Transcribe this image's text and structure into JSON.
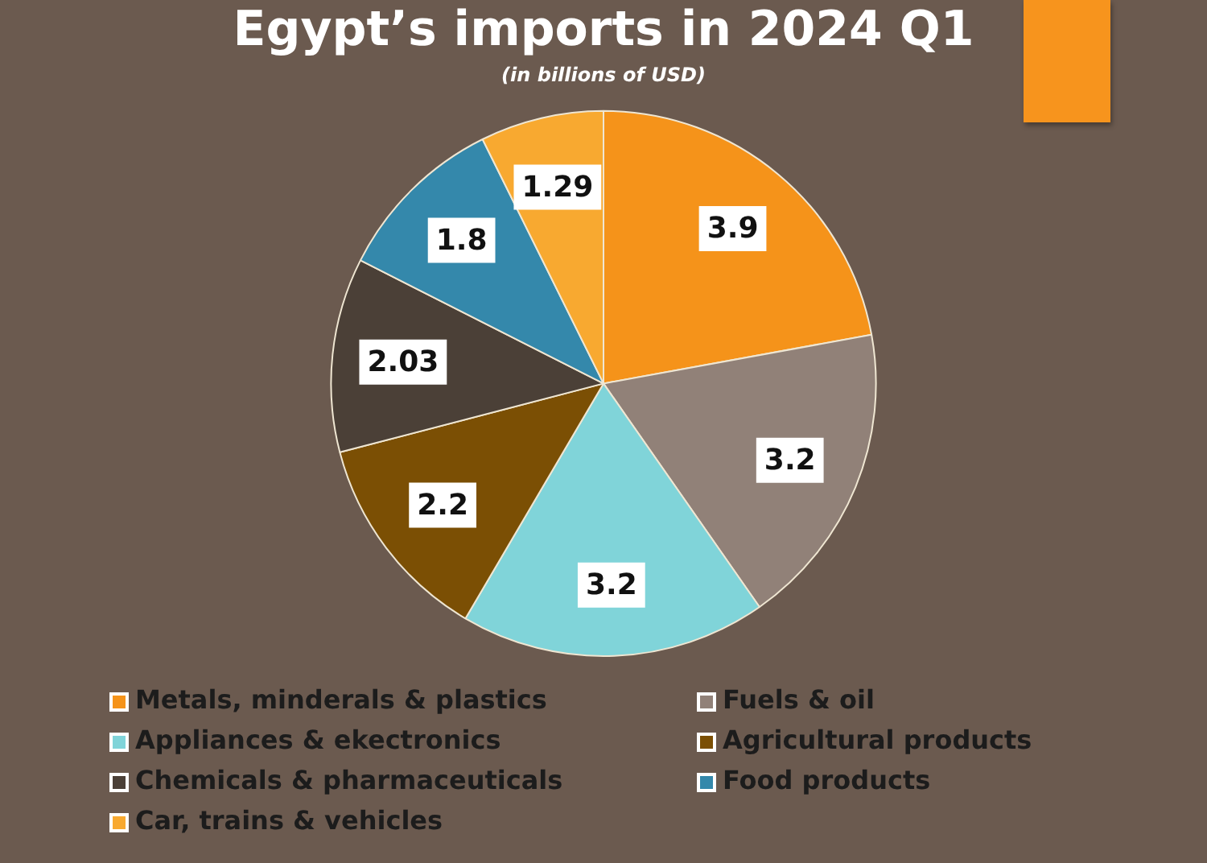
{
  "chart_data": {
    "type": "pie",
    "title": "Egypt’s imports in 2024 Q1",
    "subtitle": "(in billions of USD)",
    "categories": [
      "Metals, minderals & plastics",
      "Fuels & oil",
      "Appliances & ekectronics",
      "Agricultural products",
      "Chemicals & pharmaceuticals",
      "Food products",
      "Car, trains & vehicles"
    ],
    "values": [
      3.9,
      3.2,
      3.2,
      2.2,
      2.03,
      1.8,
      1.29
    ],
    "colors": [
      "#f5931a",
      "#918178",
      "#80d4d9",
      "#7b4f04",
      "#4b4037",
      "#3488ab",
      "#f8a930"
    ],
    "data_labels": true,
    "legend": "bottom"
  }
}
